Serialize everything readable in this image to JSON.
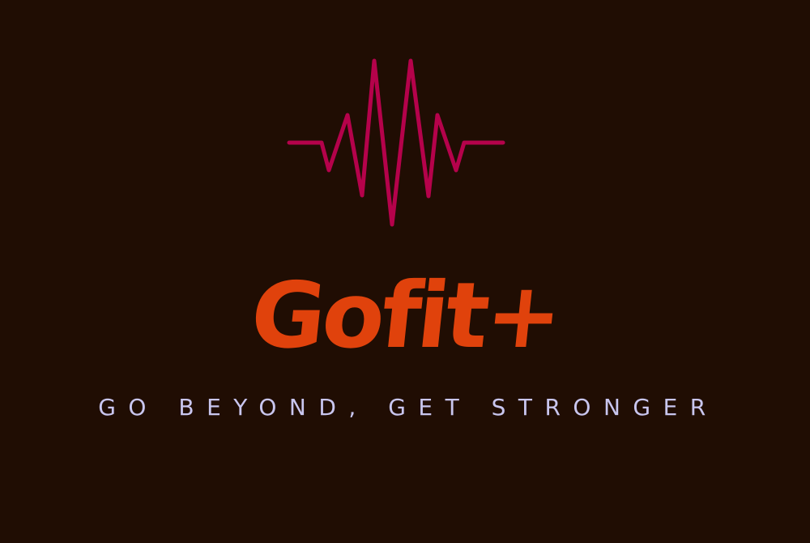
{
  "brand": {
    "name": "Gofit+",
    "tagline": "GO BEYOND, GET STRONGER"
  },
  "logo": {
    "icon": "heartbeat-pulse-icon"
  },
  "colors": {
    "background": "#200d03",
    "pulse": "#b5024b",
    "brand_name": "#e0420c",
    "tagline": "#c9c6ef"
  }
}
